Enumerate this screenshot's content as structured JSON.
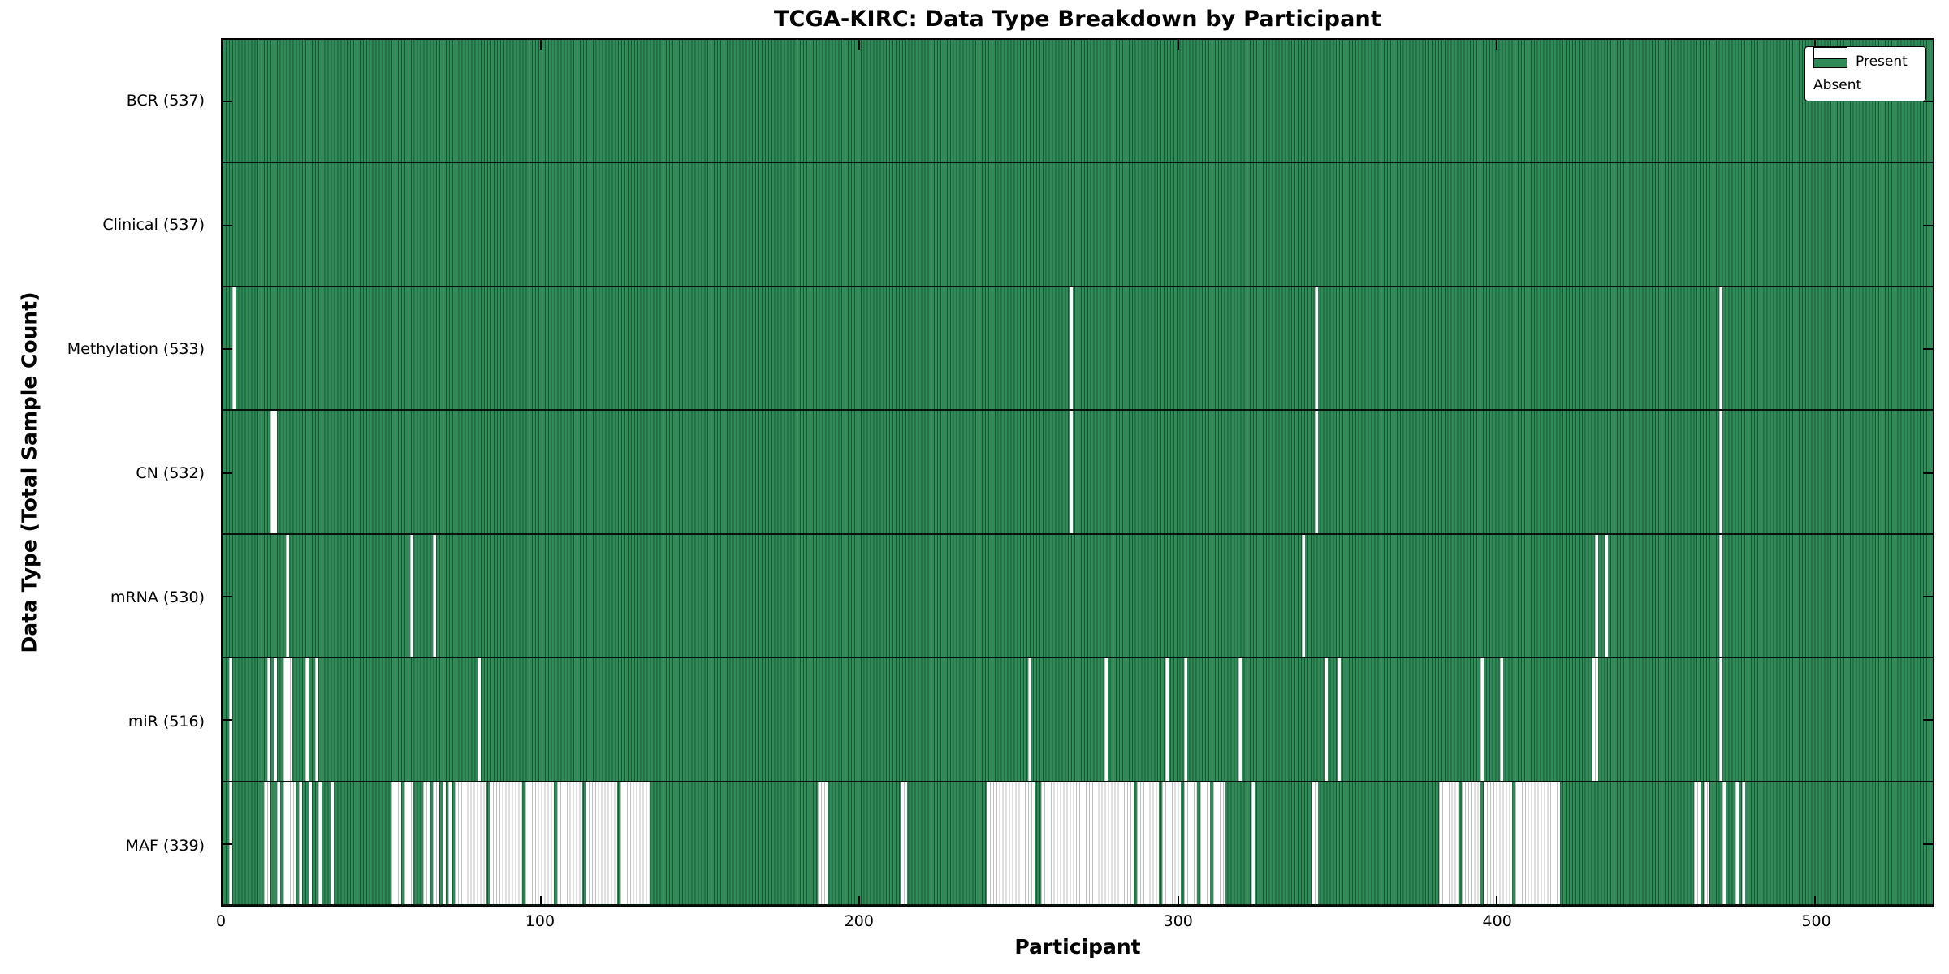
{
  "chart_data": {
    "type": "heatmap",
    "title": "TCGA-KIRC: Data Type Breakdown by Participant",
    "xlabel": "Participant",
    "ylabel": "Data Type (Total Sample Count)",
    "x_ticks": [
      0,
      100,
      200,
      300,
      400,
      500
    ],
    "x_range": [
      0,
      537
    ],
    "n_participants": 537,
    "grid": false,
    "legend_position": "upper right",
    "colors": {
      "present": "#2e8b57",
      "absent": "#ffffff",
      "bar_edge": "#0a2818",
      "spine": "#000000"
    },
    "legend": [
      {
        "label": "Present",
        "color": "#2e8b57"
      },
      {
        "label": "Absent",
        "color": "#ffffff"
      }
    ],
    "rows": [
      {
        "label": "BCR (537)",
        "data_type": "BCR",
        "present_count": 537,
        "absent_runs": []
      },
      {
        "label": "Clinical (537)",
        "data_type": "Clinical",
        "present_count": 537,
        "absent_runs": []
      },
      {
        "label": "Methylation (533)",
        "data_type": "Methylation",
        "present_count": 533,
        "absent_runs": [
          [
            3,
            3
          ],
          [
            266,
            266
          ],
          [
            343,
            343
          ],
          [
            470,
            470
          ]
        ]
      },
      {
        "label": "CN (532)",
        "data_type": "CN",
        "present_count": 532,
        "absent_runs": [
          [
            15,
            16
          ],
          [
            266,
            266
          ],
          [
            343,
            343
          ],
          [
            470,
            470
          ]
        ]
      },
      {
        "label": "mRNA (530)",
        "data_type": "mRNA",
        "present_count": 530,
        "absent_runs": [
          [
            20,
            20
          ],
          [
            59,
            59
          ],
          [
            66,
            66
          ],
          [
            339,
            339
          ],
          [
            431,
            431
          ],
          [
            434,
            434
          ],
          [
            470,
            470
          ]
        ]
      },
      {
        "label": "miR (516)",
        "data_type": "miR",
        "present_count": 516,
        "absent_runs": [
          [
            2,
            2
          ],
          [
            14,
            14
          ],
          [
            16,
            16
          ],
          [
            19,
            21
          ],
          [
            26,
            26
          ],
          [
            29,
            29
          ],
          [
            80,
            80
          ],
          [
            253,
            253
          ],
          [
            277,
            277
          ],
          [
            296,
            296
          ],
          [
            302,
            302
          ],
          [
            319,
            319
          ],
          [
            346,
            346
          ],
          [
            350,
            350
          ],
          [
            395,
            395
          ],
          [
            401,
            401
          ],
          [
            430,
            431
          ],
          [
            470,
            470
          ]
        ]
      },
      {
        "label": "MAF (339)",
        "data_type": "MAF",
        "present_count": 339,
        "absent_runs": [
          [
            2,
            2
          ],
          [
            13,
            14
          ],
          [
            17,
            17
          ],
          [
            19,
            22
          ],
          [
            24,
            24
          ],
          [
            27,
            27
          ],
          [
            30,
            30
          ],
          [
            34,
            34
          ],
          [
            53,
            55
          ],
          [
            57,
            59
          ],
          [
            63,
            64
          ],
          [
            66,
            67
          ],
          [
            69,
            69
          ],
          [
            71,
            71
          ],
          [
            73,
            82
          ],
          [
            84,
            93
          ],
          [
            95,
            103
          ],
          [
            105,
            112
          ],
          [
            114,
            123
          ],
          [
            125,
            133
          ],
          [
            187,
            189
          ],
          [
            213,
            214
          ],
          [
            240,
            254
          ],
          [
            257,
            285
          ],
          [
            287,
            293
          ],
          [
            295,
            300
          ],
          [
            302,
            305
          ],
          [
            307,
            309
          ],
          [
            311,
            314
          ],
          [
            323,
            323
          ],
          [
            342,
            343
          ],
          [
            382,
            387
          ],
          [
            389,
            394
          ],
          [
            396,
            404
          ],
          [
            406,
            419
          ],
          [
            462,
            463
          ],
          [
            465,
            466
          ],
          [
            471,
            471
          ],
          [
            475,
            475
          ],
          [
            477,
            477
          ]
        ]
      }
    ]
  }
}
